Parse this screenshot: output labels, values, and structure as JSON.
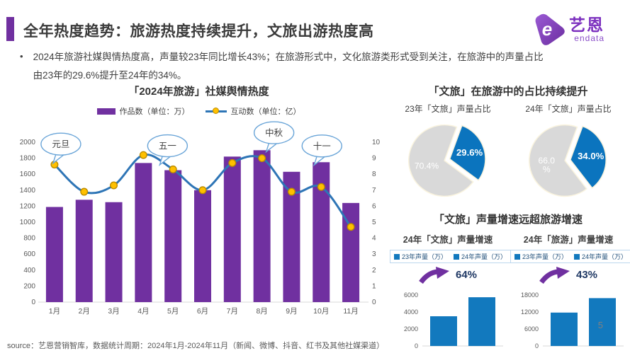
{
  "page": {
    "title": "全年热度趋势：旅游热度持续提升，文旅出游热度高",
    "bullet": "2024年旅游社媒舆情热度高，声量较23年同比增长43%；在旅游形式中，文化旅游类形式受到关注，在旅游中的声量占比由23年的29.6%提升至24年的34%。",
    "source": "source：艺恩营销智库，数据统计周期：2024年1月-2024年11月（新闻、微博、抖音、红书及其他社媒渠道）",
    "page_number": "5",
    "logo": {
      "name_cn": "艺恩",
      "name_en": "endata"
    }
  },
  "sections": {
    "pies_title": "「文旅」在旅游中的占比持续提升",
    "growth_title": "「文旅」声量增速远超旅游增速"
  },
  "colors": {
    "purple": "#7030A0",
    "line_blue": "#2E75B6",
    "marker_fill": "#FFC000",
    "marker_edge": "#BC8C00",
    "pie_blue": "#0B74BE",
    "pie_gray": "#D9D9D9",
    "bar_blue": "#1279BE",
    "bubble_blue": "#6AA5D8",
    "axis_gray": "#595959",
    "axis_line": "#D9D9D9",
    "pct_navy": "#1F3864"
  },
  "chart_data": [
    {
      "type": "combo-bar-line",
      "title": "「2024年旅游」社媒舆情热度",
      "categories": [
        "1月",
        "2月",
        "3月",
        "4月",
        "5月",
        "6月",
        "7月",
        "8月",
        "9月",
        "10月",
        "11月"
      ],
      "series": [
        {
          "name": "作品数（单位：万）",
          "type": "bar",
          "axis": "left",
          "values": [
            1190,
            1280,
            1250,
            1740,
            1650,
            1400,
            1820,
            1900,
            1630,
            1750,
            1240
          ]
        },
        {
          "name": "互动数（单位：亿）",
          "type": "line",
          "axis": "right",
          "values": [
            8.6,
            6.9,
            7.3,
            9.2,
            8.3,
            7.0,
            8.7,
            9.0,
            6.9,
            7.2,
            4.7
          ]
        }
      ],
      "left_axis": {
        "min": 0,
        "max": 2000,
        "step": 200
      },
      "right_axis": {
        "min": 0,
        "max": 10,
        "step": 1
      },
      "annotations": [
        {
          "label": "元旦",
          "category": "1月"
        },
        {
          "label": "五一",
          "category": "4月"
        },
        {
          "label": "中秋",
          "category": "8月"
        },
        {
          "label": "十一",
          "category": "10月"
        }
      ],
      "grid": false,
      "legend_position": "top"
    },
    {
      "type": "pie",
      "title": "23年「文旅」声量占比",
      "start_angle_deg": 20,
      "slices": [
        {
          "label": "29.6%",
          "value": 29.6,
          "color_key": "pie_blue",
          "exploded": true
        },
        {
          "label": "70.4%",
          "value": 70.4,
          "color_key": "pie_gray",
          "exploded": false
        }
      ]
    },
    {
      "type": "pie",
      "title": "24年「文旅」声量占比",
      "start_angle_deg": 20,
      "slices": [
        {
          "label": "34.0%",
          "value": 34.0,
          "color_key": "pie_blue",
          "exploded": true
        },
        {
          "label": "66.0 %",
          "value": 66.0,
          "color_key": "pie_gray",
          "exploded": false
        }
      ]
    },
    {
      "type": "bar",
      "title": "24年「文旅」声量增速",
      "legend": [
        "23年声量（万）",
        "24年声量（万）"
      ],
      "values": [
        3500,
        5740
      ],
      "growth_label": "64%",
      "ylim": [
        0,
        6000
      ],
      "yticks": [
        0,
        2000,
        4000,
        6000
      ]
    },
    {
      "type": "bar",
      "title": "24年「旅游」声量增速",
      "legend": [
        "23年声量（万）",
        "24年声量（万）"
      ],
      "values": [
        11800,
        16900
      ],
      "growth_label": "43%",
      "ylim": [
        0,
        18000
      ],
      "yticks": [
        0,
        6000,
        12000,
        18000
      ]
    }
  ]
}
